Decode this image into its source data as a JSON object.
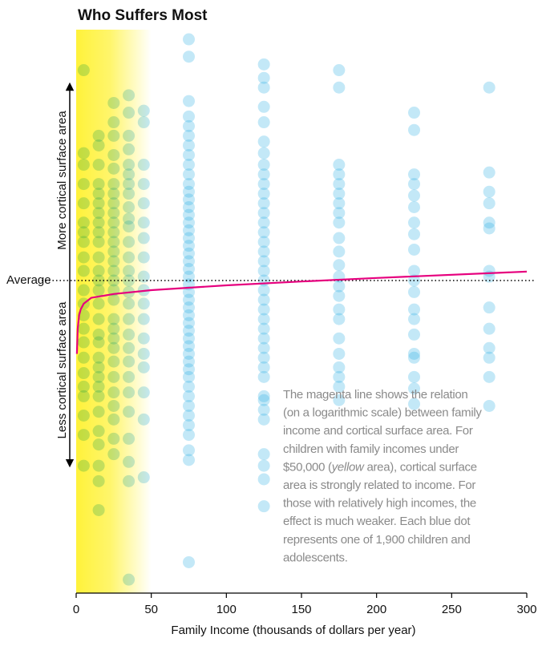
{
  "chart_data": {
    "type": "scatter",
    "title": "Who Suffers Most",
    "xlabel": "Family Income (thousands of dollars per year)",
    "ylabel_top": "More cortical surface area",
    "ylabel_bottom": "Less cortical surface area",
    "xlim": [
      0,
      300
    ],
    "xticks": [
      0,
      50,
      100,
      150,
      200,
      250,
      300
    ],
    "ylim": [
      -1.62,
      1.3
    ],
    "highlight_range": {
      "x": [
        0,
        50
      ],
      "color": "#fff23a"
    },
    "reference_line": {
      "label": "Average",
      "value": 0
    },
    "fit": {
      "color": "#e6007e",
      "x": [
        0.5,
        1,
        2,
        3,
        5,
        10,
        25,
        50,
        100,
        150,
        200,
        300
      ],
      "y": [
        -0.38,
        -0.25,
        -0.18,
        -0.15,
        -0.12,
        -0.09,
        -0.07,
        -0.05,
        -0.025,
        -0.005,
        0.013,
        0.046
      ]
    },
    "series": [
      {
        "x": 5,
        "color": "#29abe2",
        "values": [
          1.09,
          0.66,
          0.6,
          0.5,
          0.4,
          0.3,
          0.25,
          0.2,
          0.12,
          0.05,
          -0.05,
          -0.12,
          -0.18,
          -0.25,
          -0.32,
          -0.4,
          -0.48,
          -0.55,
          -0.6,
          -0.7,
          -0.8,
          -0.96
        ]
      },
      {
        "x": 15,
        "color": "#29abe2",
        "values": [
          0.75,
          0.7,
          0.6,
          0.5,
          0.45,
          0.4,
          0.35,
          0.3,
          0.25,
          0.2,
          0.12,
          0.05,
          0,
          -0.05,
          -0.12,
          -0.2,
          -0.28,
          -0.32,
          -0.4,
          -0.45,
          -0.5,
          -0.55,
          -0.6,
          -0.68,
          -0.78,
          -0.85,
          -0.96,
          -1.04,
          -1.19
        ]
      },
      {
        "x": 25,
        "color": "#29abe2",
        "values": [
          0.92,
          0.82,
          0.75,
          0.65,
          0.58,
          0.5,
          0.45,
          0.4,
          0.35,
          0.3,
          0.25,
          0.2,
          0.15,
          0.1,
          0.05,
          0,
          -0.05,
          -0.1,
          -0.2,
          -0.25,
          -0.3,
          -0.35,
          -0.42,
          -0.5,
          -0.58,
          -0.65,
          -0.72,
          -0.82,
          -0.9
        ]
      },
      {
        "x": 35,
        "color": "#29abe2",
        "values": [
          0.96,
          0.87,
          0.75,
          0.68,
          0.6,
          0.55,
          0.5,
          0.45,
          0.38,
          0.32,
          0.28,
          0.2,
          0.12,
          0.05,
          0,
          -0.06,
          -0.12,
          -0.2,
          -0.28,
          -0.35,
          -0.42,
          -0.5,
          -0.58,
          -0.68,
          -0.82,
          -0.94,
          -1.04,
          -1.55
        ]
      },
      {
        "x": 45,
        "color": "#29abe2",
        "values": [
          0.88,
          0.82,
          0.6,
          0.5,
          0.4,
          0.3,
          0.22,
          0.12,
          0.02,
          -0.05,
          -0.12,
          -0.2,
          -0.3,
          -0.38,
          -0.45,
          -0.58,
          -0.72,
          -1.02
        ]
      },
      {
        "x": 75,
        "color": "#29abe2",
        "values": [
          1.25,
          1.16,
          0.93,
          0.85,
          0.8,
          0.75,
          0.7,
          0.65,
          0.6,
          0.55,
          0.5,
          0.46,
          0.42,
          0.38,
          0.34,
          0.3,
          0.26,
          0.22,
          0.18,
          0.14,
          0.1,
          0.06,
          0.02,
          -0.02,
          -0.06,
          -0.1,
          -0.14,
          -0.18,
          -0.22,
          -0.26,
          -0.3,
          -0.34,
          -0.38,
          -0.42,
          -0.46,
          -0.5,
          -0.55,
          -0.6,
          -0.65,
          -0.7,
          -0.75,
          -0.8,
          -0.88,
          -0.93,
          -1.46
        ]
      },
      {
        "x": 125,
        "color": "#29abe2",
        "values": [
          1.12,
          1.05,
          1.0,
          0.9,
          0.82,
          0.72,
          0.66,
          0.6,
          0.55,
          0.5,
          0.45,
          0.4,
          0.35,
          0.3,
          0.25,
          0.2,
          0.15,
          0.1,
          0.05,
          0,
          -0.05,
          -0.1,
          -0.15,
          -0.2,
          -0.25,
          -0.3,
          -0.35,
          -0.4,
          -0.45,
          -0.5,
          -0.6,
          -0.62,
          -0.67,
          -0.72,
          -0.9,
          -0.96,
          -1.03,
          -1.17
        ]
      },
      {
        "x": 175,
        "color": "#29abe2",
        "values": [
          1.09,
          1.0,
          0.6,
          0.55,
          0.5,
          0.45,
          0.4,
          0.35,
          0.3,
          0.22,
          0.15,
          0.08,
          0.02,
          -0.03,
          -0.08,
          -0.15,
          -0.2,
          -0.3,
          -0.38,
          -0.45,
          -0.5,
          -0.55,
          -0.62
        ]
      },
      {
        "x": 225,
        "color": "#29abe2",
        "values": [
          0.87,
          0.78,
          0.55,
          0.5,
          0.44,
          0.38,
          0.3,
          0.24,
          0.16,
          0.05,
          0,
          -0.06,
          -0.15,
          -0.2,
          -0.28,
          -0.38,
          -0.4,
          -0.5,
          -0.56,
          -0.64
        ]
      },
      {
        "x": 275,
        "color": "#29abe2",
        "values": [
          1.0,
          0.56,
          0.46,
          0.4,
          0.3,
          0.27,
          0.05,
          0.02,
          -0.14,
          -0.25,
          -0.35,
          -0.4,
          -0.5,
          -0.65
        ]
      }
    ],
    "annotation": [
      [
        "The magenta line shows the relation"
      ],
      [
        "(on a logarithmic scale) between family"
      ],
      [
        "income and cortical surface area. For"
      ],
      [
        "children with family incomes under"
      ],
      [
        "$50,000 (",
        "yellow",
        " area), cortical surface"
      ],
      [
        "area is strongly related to income. For"
      ],
      [
        "those with relatively high incomes, the"
      ],
      [
        "effect is much weaker. Each blue dot"
      ],
      [
        "represents one of 1,900 children and"
      ],
      [
        "adolescents."
      ]
    ]
  }
}
